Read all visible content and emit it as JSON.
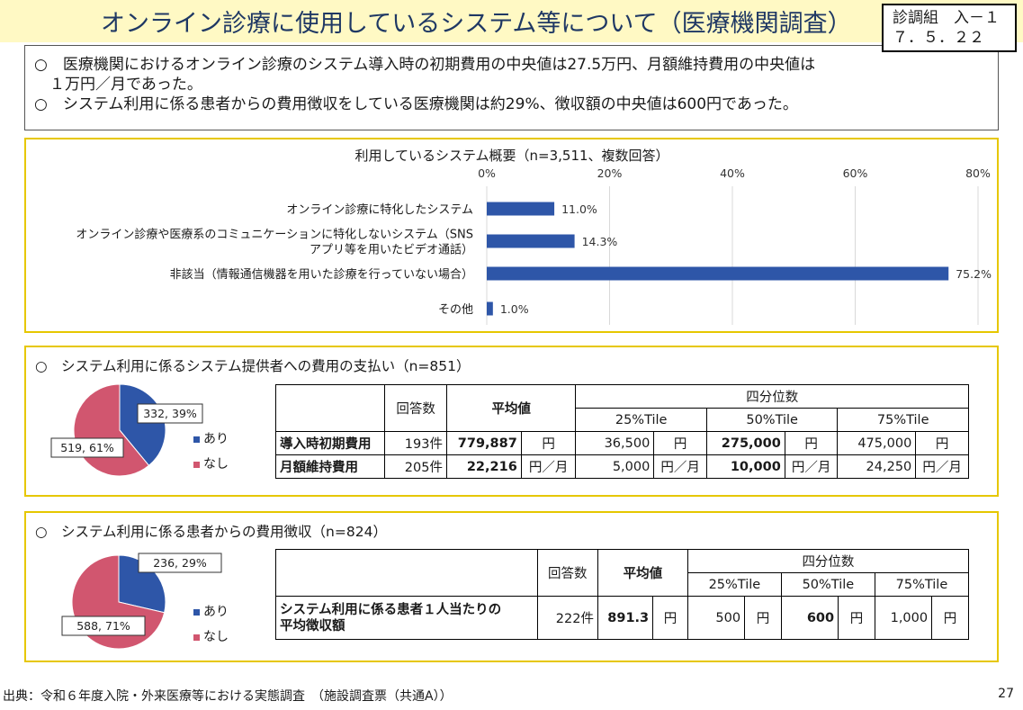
{
  "header": {
    "title": "オンライン診療に使用しているシステム等について（医療機関調査）",
    "ref_line1": "診調組　入－１",
    "ref_line2": "７．５．２２"
  },
  "summary": {
    "line1": "○　医療機関におけるオンライン診療のシステム導入時の初期費用の中央値は27.5万円、月額維持費用の中央値は",
    "line2": "　１万円／月であった。",
    "line3": "○　システム利用に係る患者からの費用徴収をしている医療機関は約29%、徴収額の中央値は600円であった。"
  },
  "colors": {
    "bar": "#2e56a8",
    "pie_yes": "#2e56a8",
    "pie_no": "#d1566f",
    "panel_border": "#e6c700"
  },
  "chart_data": [
    {
      "type": "bar",
      "orientation": "horizontal",
      "title": "利用しているシステム概要（n=3,511、複数回答）",
      "categories": [
        [
          "オンライン診療に特化したシステム"
        ],
        [
          "オンライン診療や医療系のコミュニケーションに特化しないシステム（SNS",
          "アプリ等を用いたビデオ通話）"
        ],
        [
          "非該当（情報通信機器を用いた診療を行っていない場合）"
        ],
        [
          "その他"
        ]
      ],
      "values": [
        11.0,
        14.3,
        75.2,
        1.0
      ],
      "value_labels": [
        "11.0%",
        "14.3%",
        "75.2%",
        "1.0%"
      ],
      "xlim": [
        0,
        80
      ],
      "ticks": [
        0,
        20,
        40,
        60,
        80
      ],
      "tick_labels": [
        "0%",
        "20%",
        "40%",
        "60%",
        "80%"
      ],
      "grid": true
    },
    {
      "type": "pie",
      "title": "システム利用に係るシステム提供者への費用の支払い（n=851）",
      "labels": [
        "あり",
        "なし"
      ],
      "values": [
        332,
        519
      ],
      "slice_labels": [
        "332, 39%",
        "519, 61%"
      ],
      "legend_position": "right"
    },
    {
      "type": "pie",
      "title": "システム利用に係る患者からの費用徴収（n=824）",
      "labels": [
        "あり",
        "なし"
      ],
      "values": [
        236,
        588
      ],
      "slice_labels": [
        "236, 29%",
        "588, 71%"
      ],
      "legend_position": "right"
    }
  ],
  "panel1": {
    "title": "利用しているシステム概要（n=3,511、複数回答）"
  },
  "panel2": {
    "title": "○　システム利用に係るシステム提供者への費用の支払い（n=851）",
    "legend_yes": "あり",
    "legend_no": "なし",
    "table": {
      "h_count": "回答数",
      "h_mean": "平均値",
      "h_quartile": "四分位数",
      "h_q25": "25%Tile",
      "h_q50": "50%Tile",
      "h_q75": "75%Tile",
      "rows": [
        {
          "label": "導入時初期費用",
          "count": "193件",
          "mean": "779,887",
          "mean_unit": "円",
          "q25": "36,500",
          "q25_unit": "円",
          "q50": "275,000",
          "q50_unit": "円",
          "q75": "475,000",
          "q75_unit": "円"
        },
        {
          "label": "月額維持費用",
          "count": "205件",
          "mean": "22,216",
          "mean_unit": "円／月",
          "q25": "5,000",
          "q25_unit": "円／月",
          "q50": "10,000",
          "q50_unit": "円／月",
          "q75": "24,250",
          "q75_unit": "円／月"
        }
      ]
    }
  },
  "panel3": {
    "title": "○　システム利用に係る患者からの費用徴収（n=824）",
    "legend_yes": "あり",
    "legend_no": "なし",
    "table": {
      "h_count": "回答数",
      "h_mean": "平均値",
      "h_quartile": "四分位数",
      "h_q25": "25%Tile",
      "h_q50": "50%Tile",
      "h_q75": "75%Tile",
      "row": {
        "label1": "システム利用に係る患者１人当たりの",
        "label2": "平均徴収額",
        "count": "222件",
        "mean": "891.3",
        "mean_unit": "円",
        "q25": "500",
        "q25_unit": "円",
        "q50": "600",
        "q50_unit": "円",
        "q75": "1,000",
        "q75_unit": "円"
      }
    }
  },
  "footer": {
    "source": "出典：令和６年度入院・外来医療等における実態調査　（施設調査票（共通A））",
    "page": "27"
  }
}
